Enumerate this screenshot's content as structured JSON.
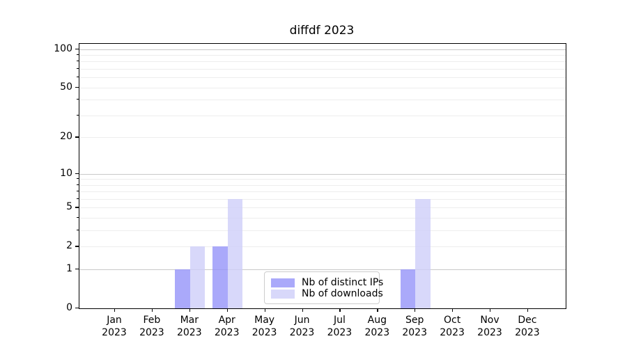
{
  "chart_data": {
    "type": "bar",
    "title": "diffdf 2023",
    "xlabel": "",
    "ylabel": "",
    "year": "2023",
    "categories": [
      "Jan",
      "Feb",
      "Mar",
      "Apr",
      "May",
      "Jun",
      "Jul",
      "Aug",
      "Sep",
      "Oct",
      "Nov",
      "Dec"
    ],
    "series": [
      {
        "name": "Nb of distinct IPs",
        "values": [
          0,
          0,
          1,
          2,
          0,
          0,
          0,
          0,
          1,
          0,
          0,
          0
        ],
        "color": "rgba(149,148,249,0.8)",
        "color_hex": "#aaa9fa"
      },
      {
        "name": "Nb of downloads",
        "values": [
          0,
          0,
          2,
          6,
          0,
          0,
          0,
          0,
          6,
          0,
          0,
          0
        ],
        "color": "rgba(206,206,249,0.8)",
        "color_hex": "#d8d8fa"
      }
    ],
    "yscale": "log1p",
    "ylim": [
      0,
      110
    ],
    "y_tick_values": [
      0,
      1,
      2,
      5,
      10,
      20,
      50,
      100
    ],
    "y_tick_labels": [
      "0",
      "1",
      "2",
      "5",
      "10",
      "20",
      "50",
      "100"
    ],
    "grid": "horizontal",
    "grid_major_values": [
      1,
      10,
      100
    ],
    "grid_minor_values": [
      2,
      3,
      4,
      5,
      6,
      7,
      8,
      9,
      20,
      30,
      40,
      50,
      60,
      70,
      80,
      90
    ],
    "legend_position": "lower center",
    "colors": {
      "grid_major": "#c8c8c8",
      "grid_minor": "#ededed",
      "axis": "#000000",
      "legend_border": "#cccccc",
      "background": "#ffffff"
    }
  }
}
